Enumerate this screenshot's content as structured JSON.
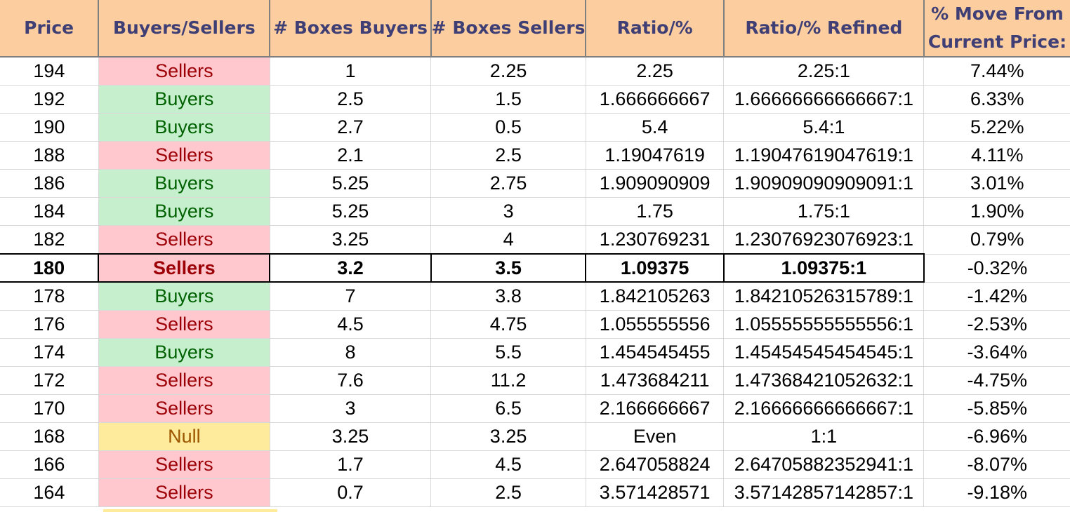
{
  "headers": {
    "price": "Price",
    "buyers_sellers": "Buyers/Sellers",
    "boxes_buyers": "# Boxes Buyers",
    "boxes_sellers": "# Boxes Sellers",
    "ratio": "Ratio/%",
    "ratio_refined": "Ratio/% Refined",
    "move_line1": "% Move From",
    "move_line2": "Current Price:"
  },
  "rows": [
    {
      "price": "194",
      "side": "Sellers",
      "buyers": "1",
      "sellers": "2.25",
      "ratio": "2.25",
      "refined": "2.25:1",
      "move": "7.44%"
    },
    {
      "price": "192",
      "side": "Buyers",
      "buyers": "2.5",
      "sellers": "1.5",
      "ratio": "1.666666667",
      "refined": "1.66666666666667:1",
      "move": "6.33%"
    },
    {
      "price": "190",
      "side": "Buyers",
      "buyers": "2.7",
      "sellers": "0.5",
      "ratio": "5.4",
      "refined": "5.4:1",
      "move": "5.22%"
    },
    {
      "price": "188",
      "side": "Sellers",
      "buyers": "2.1",
      "sellers": "2.5",
      "ratio": "1.19047619",
      "refined": "1.19047619047619:1",
      "move": "4.11%"
    },
    {
      "price": "186",
      "side": "Buyers",
      "buyers": "5.25",
      "sellers": "2.75",
      "ratio": "1.909090909",
      "refined": "1.90909090909091:1",
      "move": "3.01%"
    },
    {
      "price": "184",
      "side": "Buyers",
      "buyers": "5.25",
      "sellers": "3",
      "ratio": "1.75",
      "refined": "1.75:1",
      "move": "1.90%"
    },
    {
      "price": "182",
      "side": "Sellers",
      "buyers": "3.25",
      "sellers": "4",
      "ratio": "1.230769231",
      "refined": "1.23076923076923:1",
      "move": "0.79%"
    },
    {
      "price": "180",
      "side": "Sellers",
      "buyers": "3.2",
      "sellers": "3.5",
      "ratio": "1.09375",
      "refined": "1.09375:1",
      "move": "-0.32%"
    },
    {
      "price": "178",
      "side": "Buyers",
      "buyers": "7",
      "sellers": "3.8",
      "ratio": "1.842105263",
      "refined": "1.84210526315789:1",
      "move": "-1.42%"
    },
    {
      "price": "176",
      "side": "Sellers",
      "buyers": "4.5",
      "sellers": "4.75",
      "ratio": "1.055555556",
      "refined": "1.05555555555556:1",
      "move": "-2.53%"
    },
    {
      "price": "174",
      "side": "Buyers",
      "buyers": "8",
      "sellers": "5.5",
      "ratio": "1.454545455",
      "refined": "1.45454545454545:1",
      "move": "-3.64%"
    },
    {
      "price": "172",
      "side": "Sellers",
      "buyers": "7.6",
      "sellers": "11.2",
      "ratio": "1.473684211",
      "refined": "1.47368421052632:1",
      "move": "-4.75%"
    },
    {
      "price": "170",
      "side": "Sellers",
      "buyers": "3",
      "sellers": "6.5",
      "ratio": "2.166666667",
      "refined": "2.16666666666667:1",
      "move": "-5.85%"
    },
    {
      "price": "168",
      "side": "Null",
      "buyers": "3.25",
      "sellers": "3.25",
      "ratio": "Even",
      "refined": "1:1",
      "move": "-6.96%"
    },
    {
      "price": "166",
      "side": "Sellers",
      "buyers": "1.7",
      "sellers": "4.5",
      "ratio": "2.647058824",
      "refined": "2.64705882352941:1",
      "move": "-8.07%"
    },
    {
      "price": "164",
      "side": "Sellers",
      "buyers": "0.7",
      "sellers": "2.5",
      "ratio": "3.571428571",
      "refined": "3.57142857142857:1",
      "move": "-9.18%"
    }
  ],
  "current_price_row": 7,
  "colors": {
    "header_bg": "#fcce9f",
    "header_text": "#3f3f76",
    "buyers_bg": "#c6efce",
    "buyers_text": "#006100",
    "sellers_bg": "#ffc7ce",
    "sellers_text": "#9c0006",
    "null_bg": "#ffeb9c",
    "null_text": "#9c5700"
  }
}
